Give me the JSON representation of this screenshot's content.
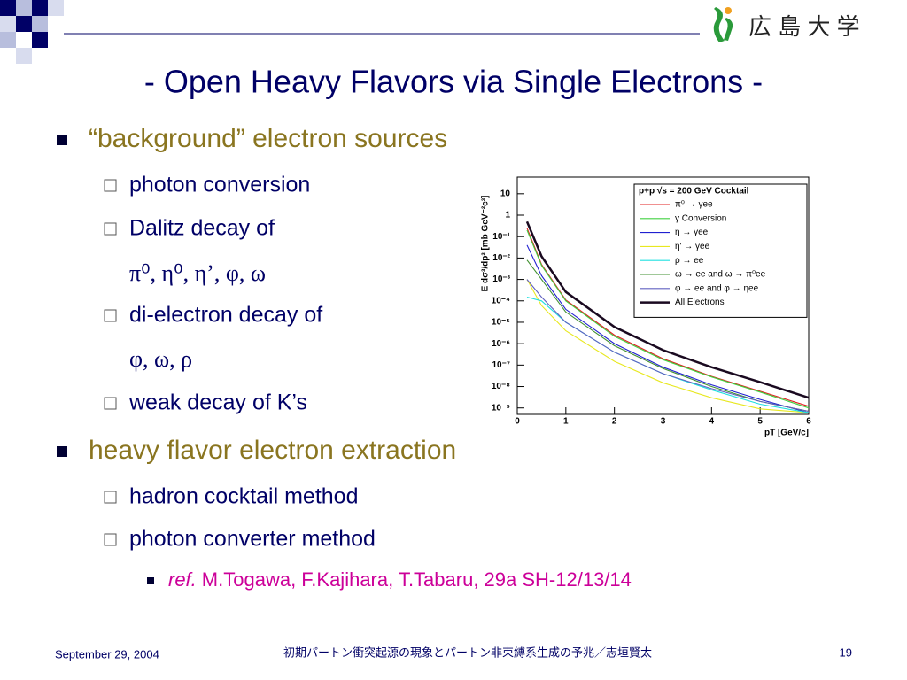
{
  "header": {
    "logo_text": "広 島 大 学"
  },
  "title": "- Open Heavy Flavors via Single Electrons -",
  "bullets": [
    {
      "text": "“background” electron sources",
      "items": [
        {
          "text": "photon conversion"
        },
        {
          "text": "Dalitz decay of",
          "detail": "π⁰, η⁰, η’, φ, ω"
        },
        {
          "text": "di-electron decay of",
          "detail": "φ, ω, ρ"
        },
        {
          "text": "weak decay of K’s"
        }
      ]
    },
    {
      "text": "heavy flavor electron extraction",
      "items": [
        {
          "text": "hadron cocktail method"
        },
        {
          "text": "photon converter method",
          "ref": {
            "label": "ref.",
            "text": "M.Togawa, F.Kajihara, T.Tabaru, 29a SH-12/13/14"
          }
        }
      ]
    }
  ],
  "footer": {
    "date": "September 29, 2004",
    "center": "初期パートン衝突起源の現象とパートン非束縛系生成の予兆／志垣賢太",
    "page": "19"
  },
  "chart_data": {
    "type": "line",
    "log_y": true,
    "xlabel": "pT [GeV/c]",
    "ylabel": "E dσ³/dp³ [mb GeV⁻²c³]",
    "legend_title": "p+p √s = 200 GeV Cocktail",
    "legend": "upper right",
    "xlim": [
      0,
      6
    ],
    "ylim": [
      5e-10,
      60
    ],
    "xticks": [
      0,
      1,
      2,
      3,
      4,
      5,
      6
    ],
    "yticks": [
      10,
      1,
      {
        "value": 0.1,
        "label": "10⁻¹"
      },
      {
        "value": 0.01,
        "label": "10⁻²"
      },
      {
        "value": 0.001,
        "label": "10⁻³"
      },
      {
        "value": 0.0001,
        "label": "10⁻⁴"
      },
      {
        "value": 1e-05,
        "label": "10⁻⁵"
      },
      {
        "value": 1e-06,
        "label": "10⁻⁶"
      },
      {
        "value": 1e-07,
        "label": "10⁻⁷"
      },
      {
        "value": 1e-08,
        "label": "10⁻⁸"
      },
      {
        "value": 1e-09,
        "label": "10⁻⁹"
      }
    ],
    "x": [
      0.2,
      0.5,
      1,
      2,
      3,
      4,
      5,
      6
    ],
    "series": [
      {
        "name": "π⁰ → γee",
        "color": "#e02020",
        "values": [
          0.25,
          0.005,
          0.00011,
          2.5e-06,
          2e-07,
          3e-08,
          6e-09,
          1.2e-09
        ]
      },
      {
        "name": "γ Conversion",
        "color": "#40d040",
        "values": [
          0.2,
          0.0045,
          0.0001,
          2.2e-06,
          1.8e-07,
          2.8e-08,
          5.5e-09,
          1e-09
        ]
      },
      {
        "name": "η → γee",
        "color": "#2020d0",
        "values": [
          0.04,
          0.0015,
          4e-05,
          1e-06,
          8e-08,
          1.2e-08,
          2.5e-09,
          6e-10
        ]
      },
      {
        "name": "η' → γee",
        "color": "#e8e820",
        "values": [
          0.001,
          6e-05,
          4e-06,
          1.5e-07,
          1.5e-08,
          3e-09,
          9e-10,
          6e-10
        ]
      },
      {
        "name": "ρ → ee",
        "color": "#20e0e0",
        "values": [
          0.00015,
          0.0001,
          1e-05,
          4e-07,
          4e-08,
          7e-09,
          1.5e-09,
          6e-10
        ]
      },
      {
        "name": "ω → ee and ω → π⁰ee",
        "color": "#409030",
        "values": [
          0.008,
          0.001,
          3e-05,
          8e-07,
          7e-08,
          1e-08,
          2e-09,
          7e-10
        ]
      },
      {
        "name": "φ → ee and φ → ηee",
        "color": "#6060c0",
        "values": [
          0.001,
          0.00015,
          1e-05,
          4e-07,
          4e-08,
          8e-09,
          2e-09,
          7e-10
        ]
      },
      {
        "name": "All Electrons",
        "color": "#1a0a20",
        "values": [
          0.5,
          0.012,
          0.00026,
          6e-06,
          5e-07,
          8e-08,
          1.6e-08,
          3e-09
        ]
      }
    ]
  }
}
